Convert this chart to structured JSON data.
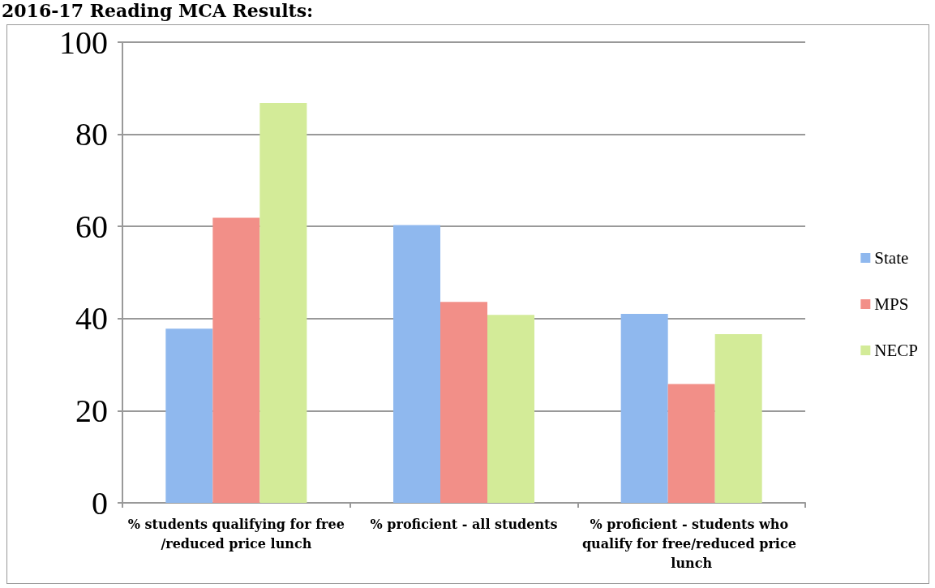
{
  "chart_data": {
    "type": "bar",
    "title": "2016-17 Reading MCA Results:",
    "categories": [
      "% students qualifying for free/reduced price lunch",
      "% proficient - all students",
      "% proficient - students who qualify for free/reduced price lunch"
    ],
    "series": [
      {
        "name": "State",
        "color": "#8fb8ee",
        "values": [
          37.8,
          60.3,
          41.0
        ]
      },
      {
        "name": "MPS",
        "color": "#f28f88",
        "values": [
          61.9,
          43.6,
          25.8
        ]
      },
      {
        "name": "NECP",
        "color": "#d3eb98",
        "values": [
          86.8,
          40.8,
          36.6
        ]
      }
    ],
    "ylim": [
      0,
      100
    ],
    "yticks": [
      0,
      20,
      40,
      60,
      80,
      100
    ],
    "grid": "y",
    "legend": "right"
  }
}
